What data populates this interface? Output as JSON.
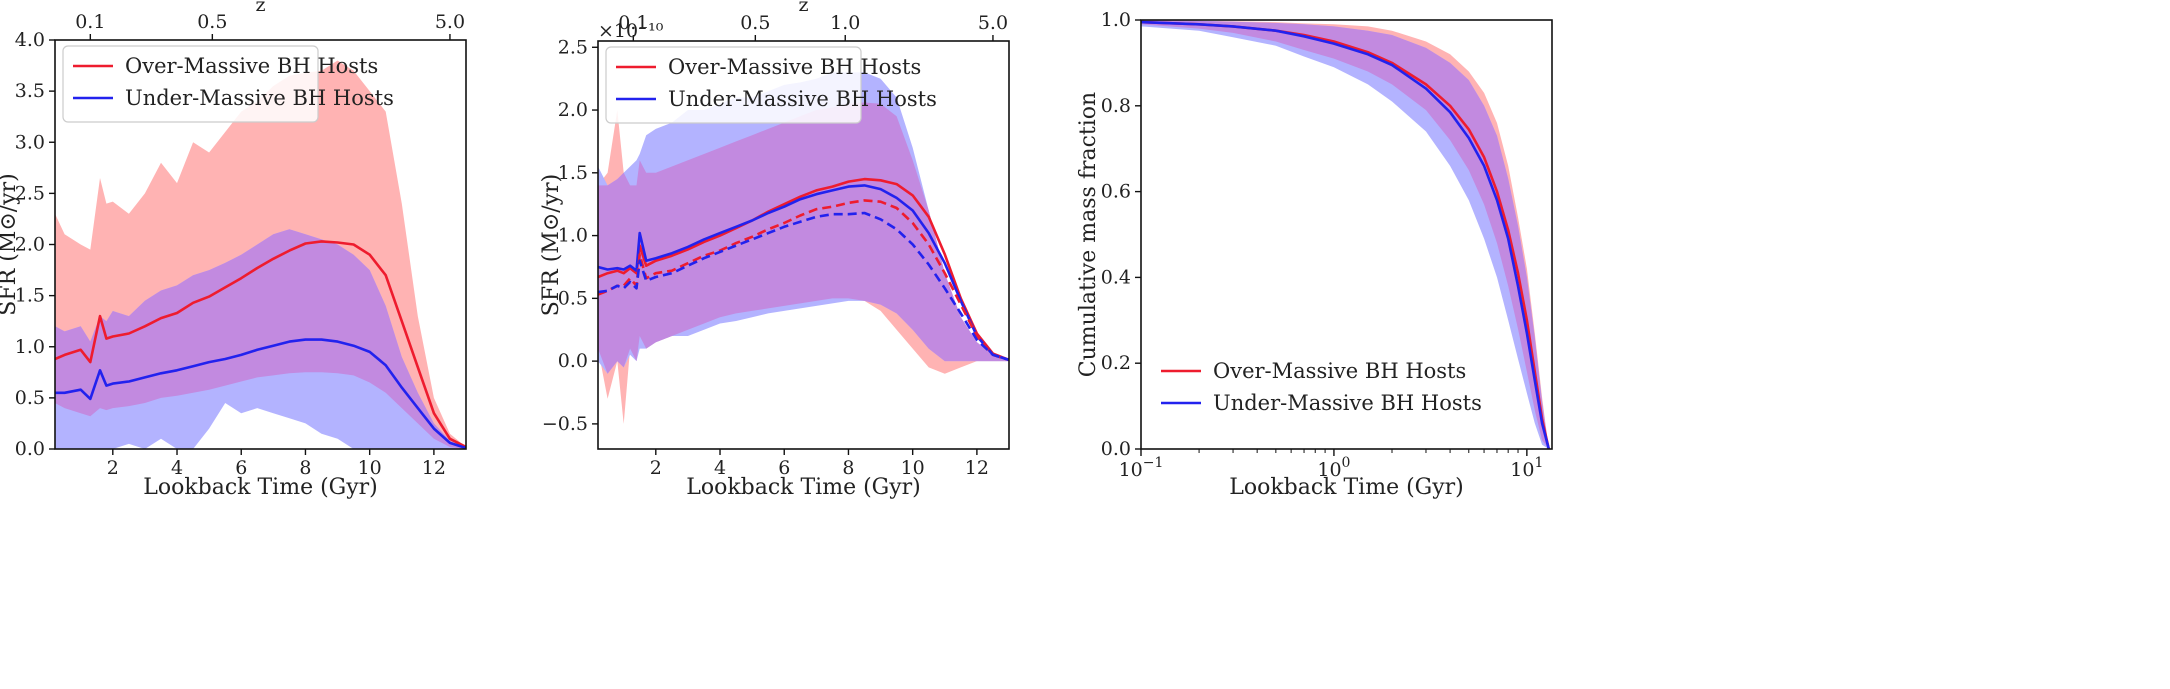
{
  "colors": {
    "over": "#ee1c2e",
    "under": "#2222ee",
    "over_band": "#ffb3b3",
    "under_band": "#b3b3ff",
    "overlap_band": "#c28ae0"
  },
  "chart_data": [
    {
      "type": "line",
      "title": "",
      "xlabel": "Lookback Time (Gyr)",
      "ylabel": "SFR (M⊙/yr)",
      "top_axis_label": "z",
      "xlim": [
        0.2,
        13.0
      ],
      "ylim": [
        0,
        4.0
      ],
      "xticks": [
        2,
        4,
        6,
        8,
        10,
        12
      ],
      "yticks": [
        0.0,
        0.5,
        1.0,
        1.5,
        2.0,
        2.5,
        3.0,
        3.5,
        4.0
      ],
      "top_ticks": [
        {
          "label": "0.1",
          "t": 1.3
        },
        {
          "label": "0.5",
          "t": 5.1
        },
        {
          "label": "5.0",
          "t": 12.5
        }
      ],
      "legend": {
        "position": "upper-left",
        "entries": [
          "Over-Massive BH Hosts",
          "Under-Massive BH Hosts"
        ]
      },
      "x": [
        0.2,
        0.5,
        1.0,
        1.3,
        1.6,
        1.8,
        2.0,
        2.5,
        3.0,
        3.5,
        4.0,
        4.5,
        5.0,
        5.5,
        6.0,
        6.5,
        7.0,
        7.5,
        8.0,
        8.5,
        9.0,
        9.5,
        10.0,
        10.5,
        11.0,
        11.5,
        12.0,
        12.5,
        13.0
      ],
      "series": [
        {
          "name": "Over-Massive BH Hosts",
          "style": "solid",
          "color_key": "over",
          "values": [
            0.88,
            0.92,
            0.97,
            0.85,
            1.3,
            1.08,
            1.1,
            1.13,
            1.2,
            1.28,
            1.33,
            1.43,
            1.49,
            1.58,
            1.67,
            1.77,
            1.86,
            1.94,
            2.01,
            2.03,
            2.02,
            2.0,
            1.9,
            1.7,
            1.25,
            0.8,
            0.35,
            0.1,
            0.02
          ],
          "band_low": [
            0.45,
            0.4,
            0.35,
            0.32,
            0.4,
            0.38,
            0.4,
            0.42,
            0.45,
            0.5,
            0.52,
            0.55,
            0.58,
            0.62,
            0.66,
            0.7,
            0.72,
            0.74,
            0.75,
            0.75,
            0.74,
            0.72,
            0.65,
            0.55,
            0.4,
            0.25,
            0.1,
            0.02,
            0.0
          ],
          "band_high": [
            2.3,
            2.1,
            2.0,
            1.95,
            2.65,
            2.4,
            2.42,
            2.3,
            2.5,
            2.8,
            2.6,
            3.0,
            2.9,
            3.1,
            3.3,
            3.4,
            3.55,
            3.65,
            3.68,
            3.7,
            3.8,
            3.7,
            3.5,
            3.3,
            2.4,
            1.3,
            0.5,
            0.15,
            0.02
          ]
        },
        {
          "name": "Under-Massive BH Hosts",
          "style": "solid",
          "color_key": "under",
          "values": [
            0.55,
            0.55,
            0.58,
            0.49,
            0.77,
            0.62,
            0.64,
            0.66,
            0.7,
            0.74,
            0.77,
            0.81,
            0.85,
            0.88,
            0.92,
            0.97,
            1.01,
            1.05,
            1.07,
            1.07,
            1.05,
            1.01,
            0.95,
            0.82,
            0.6,
            0.4,
            0.2,
            0.06,
            0.01
          ],
          "band_low": [
            0.0,
            0.0,
            0.0,
            0.0,
            0.0,
            0.0,
            0.0,
            0.05,
            0.0,
            0.1,
            0.0,
            0.0,
            0.2,
            0.45,
            0.35,
            0.4,
            0.35,
            0.3,
            0.25,
            0.15,
            0.1,
            0.0,
            0.0,
            0.0,
            0.0,
            0.0,
            0.0,
            0.0,
            0.0
          ],
          "band_high": [
            1.2,
            1.15,
            1.2,
            1.05,
            1.3,
            1.25,
            1.35,
            1.3,
            1.45,
            1.55,
            1.6,
            1.7,
            1.75,
            1.82,
            1.9,
            2.0,
            2.1,
            2.15,
            2.1,
            2.05,
            2.0,
            1.9,
            1.75,
            1.4,
            0.9,
            0.55,
            0.25,
            0.08,
            0.01
          ]
        }
      ]
    },
    {
      "type": "line",
      "title": "",
      "xlabel": "Lookback Time (Gyr)",
      "ylabel": "SFR (M⊙/yr)",
      "top_axis_label": "z",
      "scale_label": "×10⁻¹⁰",
      "xlim": [
        0.2,
        13.0
      ],
      "ylim": [
        -0.7,
        2.55
      ],
      "xticks": [
        2,
        4,
        6,
        8,
        10,
        12
      ],
      "yticks": [
        -0.5,
        0.0,
        0.5,
        1.0,
        1.5,
        2.0,
        2.5
      ],
      "top_ticks": [
        {
          "label": "0.1",
          "t": 1.3
        },
        {
          "label": "0.5",
          "t": 5.1
        },
        {
          "label": "1.0",
          "t": 7.9
        },
        {
          "label": "5.0",
          "t": 12.5
        }
      ],
      "legend": {
        "position": "upper-left",
        "entries": [
          "Over-Massive BH Hosts",
          "Under-Massive BH Hosts"
        ]
      },
      "x": [
        0.2,
        0.5,
        0.8,
        1.0,
        1.2,
        1.4,
        1.5,
        1.7,
        2.0,
        2.5,
        3.0,
        3.5,
        4.0,
        4.5,
        5.0,
        5.5,
        6.0,
        6.5,
        7.0,
        7.5,
        8.0,
        8.5,
        9.0,
        9.5,
        10.0,
        10.5,
        11.0,
        11.5,
        12.0,
        12.5,
        13.0
      ],
      "series": [
        {
          "name": "Over-Massive BH Hosts",
          "style": "solid",
          "color_key": "over",
          "values": [
            0.67,
            0.7,
            0.72,
            0.7,
            0.74,
            0.7,
            0.92,
            0.76,
            0.8,
            0.84,
            0.89,
            0.95,
            1.0,
            1.06,
            1.12,
            1.19,
            1.25,
            1.31,
            1.36,
            1.39,
            1.43,
            1.45,
            1.44,
            1.41,
            1.32,
            1.15,
            0.85,
            0.5,
            0.22,
            0.06,
            0.01
          ],
          "band_low": [
            0.1,
            -0.3,
            0.0,
            -0.5,
            0.1,
            0.0,
            0.2,
            0.1,
            0.15,
            0.2,
            0.25,
            0.3,
            0.35,
            0.38,
            0.4,
            0.42,
            0.44,
            0.46,
            0.48,
            0.5,
            0.5,
            0.48,
            0.4,
            0.25,
            0.1,
            -0.05,
            -0.1,
            -0.05,
            0.0,
            0.0,
            0.0
          ],
          "band_high": [
            1.4,
            1.5,
            2.0,
            1.5,
            1.4,
            1.4,
            1.6,
            1.5,
            1.5,
            1.55,
            1.6,
            1.65,
            1.7,
            1.75,
            1.8,
            1.85,
            1.9,
            1.95,
            2.0,
            2.02,
            2.05,
            2.06,
            2.05,
            1.95,
            1.6,
            1.2,
            0.7,
            0.35,
            0.15,
            0.05,
            0.01
          ]
        },
        {
          "name": "Under-Massive BH Hosts",
          "style": "solid",
          "color_key": "under",
          "values": [
            0.75,
            0.73,
            0.74,
            0.73,
            0.76,
            0.72,
            1.02,
            0.8,
            0.82,
            0.86,
            0.91,
            0.97,
            1.02,
            1.07,
            1.12,
            1.18,
            1.23,
            1.29,
            1.33,
            1.36,
            1.39,
            1.4,
            1.37,
            1.3,
            1.2,
            1.02,
            0.78,
            0.48,
            0.2,
            0.05,
            0.01
          ],
          "band_low": [
            0.0,
            -0.1,
            0.0,
            -0.05,
            0.05,
            0.0,
            0.1,
            0.1,
            0.15,
            0.2,
            0.2,
            0.25,
            0.3,
            0.32,
            0.35,
            0.38,
            0.4,
            0.42,
            0.44,
            0.46,
            0.48,
            0.48,
            0.45,
            0.38,
            0.25,
            0.1,
            0.0,
            0.0,
            0.0,
            0.0,
            0.0
          ],
          "band_high": [
            1.55,
            1.4,
            1.45,
            1.5,
            1.55,
            1.6,
            1.65,
            1.8,
            1.85,
            1.9,
            2.0,
            2.0,
            2.05,
            2.1,
            2.1,
            2.15,
            2.2,
            2.22,
            2.25,
            2.3,
            2.3,
            2.3,
            2.25,
            2.1,
            1.7,
            1.2,
            0.7,
            0.35,
            0.15,
            0.05,
            0.01
          ]
        },
        {
          "name": "",
          "style": "dashed",
          "color_key": "over",
          "values": [
            0.53,
            0.56,
            0.6,
            0.6,
            0.66,
            0.6,
            0.85,
            0.66,
            0.7,
            0.72,
            0.78,
            0.84,
            0.88,
            0.94,
            0.99,
            1.05,
            1.1,
            1.16,
            1.21,
            1.23,
            1.26,
            1.28,
            1.27,
            1.22,
            1.1,
            0.93,
            0.7,
            0.45,
            0.2,
            0.05,
            0.01
          ]
        },
        {
          "name": "",
          "style": "dashed",
          "color_key": "under",
          "values": [
            0.55,
            0.56,
            0.6,
            0.58,
            0.63,
            0.58,
            0.8,
            0.64,
            0.67,
            0.7,
            0.76,
            0.82,
            0.87,
            0.92,
            0.97,
            1.02,
            1.07,
            1.11,
            1.15,
            1.17,
            1.17,
            1.18,
            1.13,
            1.05,
            0.93,
            0.77,
            0.58,
            0.38,
            0.17,
            0.05,
            0.01
          ]
        }
      ]
    },
    {
      "type": "line",
      "title": "",
      "xlabel": "Lookback Time (Gyr)",
      "ylabel": "Cumulative mass fraction",
      "xscale": "log",
      "xlim": [
        0.1,
        13.5
      ],
      "ylim": [
        0,
        1.0
      ],
      "xticks": [
        {
          "base": "10",
          "exp": "−1",
          "value": 0.1
        },
        {
          "base": "10",
          "exp": "0",
          "value": 1
        },
        {
          "base": "10",
          "exp": "1",
          "value": 10
        }
      ],
      "yticks": [
        0.0,
        0.2,
        0.4,
        0.6,
        0.8,
        1.0
      ],
      "legend": {
        "position": "lower-left",
        "entries": [
          "Over-Massive BH Hosts",
          "Under-Massive BH Hosts"
        ]
      },
      "x": [
        0.1,
        0.2,
        0.3,
        0.5,
        0.7,
        1.0,
        1.5,
        2.0,
        3.0,
        4.0,
        5.0,
        6.0,
        7.0,
        8.0,
        9.0,
        10.0,
        11.0,
        12.0,
        13.0
      ],
      "series": [
        {
          "name": "Over-Massive BH Hosts",
          "style": "solid",
          "color_key": "over",
          "values": [
            0.995,
            0.99,
            0.985,
            0.975,
            0.965,
            0.95,
            0.925,
            0.9,
            0.85,
            0.8,
            0.745,
            0.68,
            0.6,
            0.51,
            0.41,
            0.3,
            0.18,
            0.07,
            0.0
          ],
          "band_low": [
            0.99,
            0.98,
            0.97,
            0.95,
            0.93,
            0.91,
            0.88,
            0.85,
            0.79,
            0.72,
            0.65,
            0.57,
            0.48,
            0.38,
            0.28,
            0.18,
            0.09,
            0.02,
            0.0
          ],
          "band_high": [
            1.0,
            0.998,
            0.997,
            0.995,
            0.992,
            0.99,
            0.985,
            0.975,
            0.95,
            0.92,
            0.88,
            0.83,
            0.76,
            0.66,
            0.54,
            0.42,
            0.27,
            0.12,
            0.0
          ]
        },
        {
          "name": "Under-Massive BH Hosts",
          "style": "solid",
          "color_key": "under",
          "values": [
            0.995,
            0.99,
            0.985,
            0.975,
            0.962,
            0.945,
            0.92,
            0.895,
            0.84,
            0.785,
            0.725,
            0.66,
            0.58,
            0.49,
            0.38,
            0.27,
            0.16,
            0.06,
            0.0
          ],
          "band_low": [
            0.985,
            0.975,
            0.96,
            0.94,
            0.915,
            0.89,
            0.85,
            0.81,
            0.74,
            0.66,
            0.58,
            0.49,
            0.4,
            0.3,
            0.21,
            0.13,
            0.06,
            0.01,
            0.0
          ],
          "band_high": [
            1.0,
            0.998,
            0.996,
            0.993,
            0.99,
            0.985,
            0.975,
            0.965,
            0.935,
            0.9,
            0.86,
            0.8,
            0.73,
            0.63,
            0.52,
            0.4,
            0.26,
            0.11,
            0.0
          ]
        }
      ]
    }
  ]
}
